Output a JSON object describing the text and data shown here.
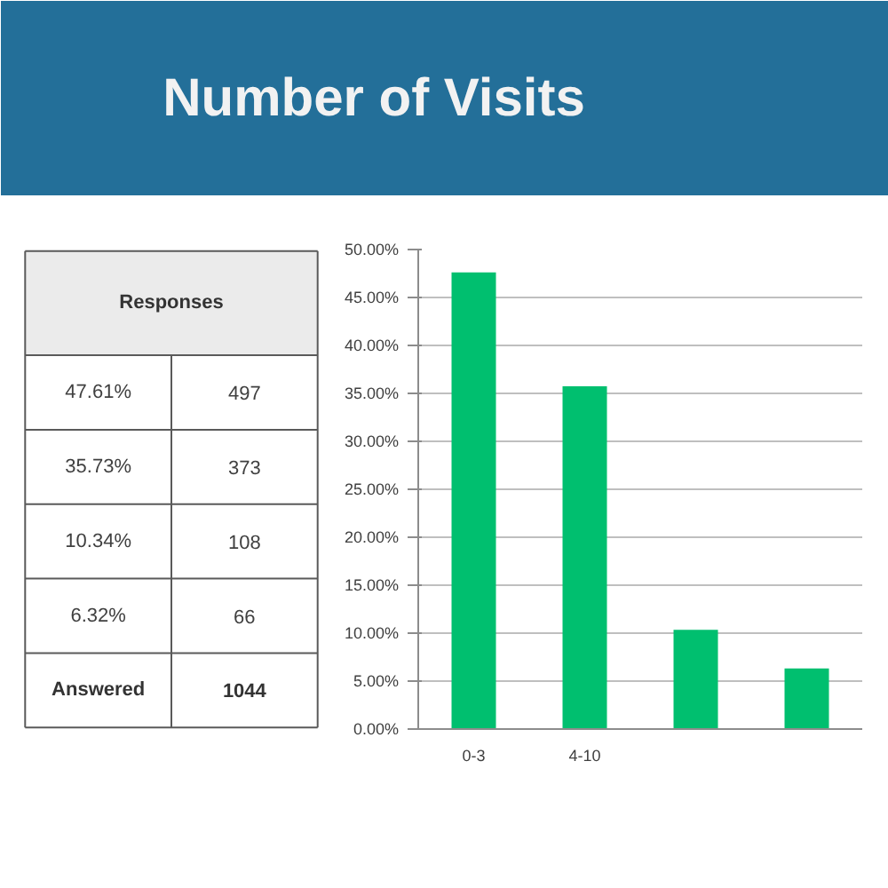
{
  "chart_data": {
    "type": "bar",
    "title": "Number of Visits",
    "categories": [
      "0-3",
      "4-10",
      null,
      null
    ],
    "values": [
      47.61,
      35.73,
      10.34,
      6.32
    ],
    "color": "#00bf6f",
    "ylim": [
      0,
      50
    ],
    "yticks": [
      {
        "value": 0,
        "label": "0.00%"
      },
      {
        "value": 5,
        "label": "5.00%"
      },
      {
        "value": 10,
        "label": "10.00%"
      },
      {
        "value": 15,
        "label": "15.00%"
      },
      {
        "value": 20,
        "label": "20.00%"
      },
      {
        "value": 25,
        "label": "25.00%"
      },
      {
        "value": 30,
        "label": "30.00%"
      },
      {
        "value": 35,
        "label": "35.00%"
      },
      {
        "value": 40,
        "label": "40.00%"
      },
      {
        "value": 45,
        "label": "45.00%"
      },
      {
        "value": 50,
        "label": "50.00%"
      }
    ],
    "grid": "y",
    "annotations": [
      "Responses",
      "47.61%",
      "497",
      "35.73%",
      "373",
      "10.34%",
      "108",
      "6.32%",
      "66",
      "Answered",
      "1044"
    ]
  }
}
